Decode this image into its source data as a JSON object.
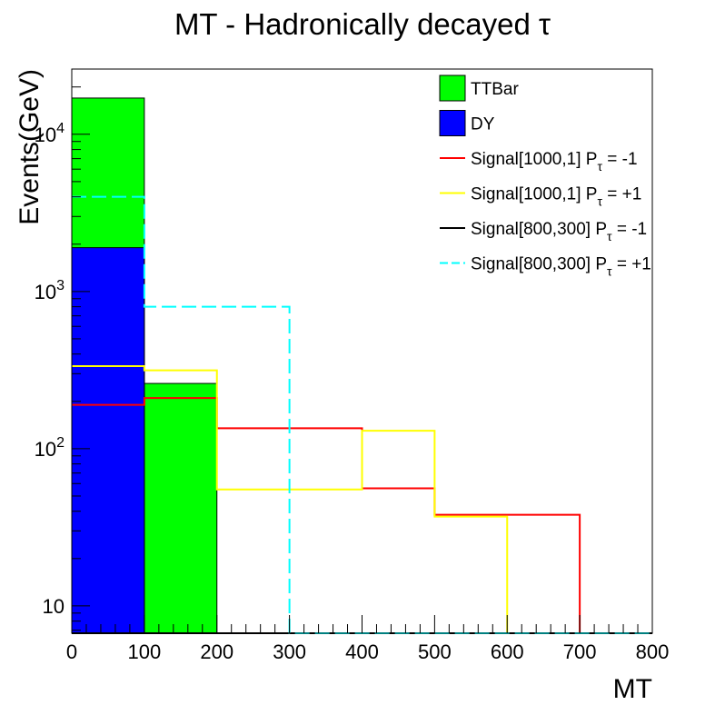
{
  "title": "MT - Hadronically decayed τ",
  "chart_data": {
    "type": "bar",
    "subtype": "stacked-histogram-with-step-overlays",
    "title": "MT - Hadronically decayed τ",
    "xlabel": "MT",
    "ylabel": "Events(GeV)",
    "xlim": [
      0,
      800
    ],
    "ylim": [
      6.7,
      26000
    ],
    "yscale": "log",
    "grid": false,
    "legend_position": "top-right",
    "x_ticks": [
      {
        "value": 0,
        "label": "0"
      },
      {
        "value": 100,
        "label": "100"
      },
      {
        "value": 200,
        "label": "200"
      },
      {
        "value": 300,
        "label": "300"
      },
      {
        "value": 400,
        "label": "400"
      },
      {
        "value": 500,
        "label": "500"
      },
      {
        "value": 600,
        "label": "600"
      },
      {
        "value": 700,
        "label": "700"
      },
      {
        "value": 800,
        "label": "800"
      }
    ],
    "y_ticks": [
      {
        "value": 10,
        "base": "10",
        "exp": ""
      },
      {
        "value": 100,
        "base": "10",
        "exp": "2"
      },
      {
        "value": 1000,
        "base": "10",
        "exp": "3"
      },
      {
        "value": 10000,
        "base": "10",
        "exp": "4"
      }
    ],
    "bin_edges": [
      0,
      100,
      200,
      300,
      400,
      500,
      600,
      700,
      800
    ],
    "stacked": [
      {
        "name": "DY",
        "color": "#0000ff",
        "values": [
          1900,
          0,
          0,
          0,
          0,
          0,
          0,
          0
        ]
      },
      {
        "name": "TTBar",
        "color": "#00ff00",
        "values": [
          15100,
          260,
          0,
          0,
          0,
          0,
          0,
          0
        ]
      }
    ],
    "series": [
      {
        "name": "Signal[1000,1]",
        "label_suffix": " = -1",
        "color": "#ff0000",
        "dash": "solid",
        "values": [
          190,
          210,
          135,
          135,
          56,
          38,
          38,
          0
        ]
      },
      {
        "name": "Signal[1000,1]",
        "label_suffix": " = +1",
        "color": "#ffff00",
        "dash": "solid",
        "values": [
          335,
          315,
          55,
          55,
          130,
          37,
          0,
          0
        ]
      },
      {
        "name": "Signal[800,300]",
        "label_suffix": " = -1",
        "color": "#000000",
        "dash": "solid",
        "values": [
          0,
          0,
          0,
          0,
          0,
          0,
          0,
          0
        ]
      },
      {
        "name": "Signal[800,300]",
        "label_suffix": " = +1",
        "color": "#00ffff",
        "dash": "dashed",
        "values": [
          4000,
          800,
          800,
          0,
          0,
          0,
          0,
          0
        ]
      }
    ],
    "legend": [
      {
        "label": "TTBar",
        "color": "#00ff00",
        "kind": "box"
      },
      {
        "label": "DY",
        "color": "#0000ff",
        "kind": "box"
      },
      {
        "label": "Signal[1000,1] P",
        "sub": "τ",
        "suffix": " = -1",
        "color": "#ff0000",
        "kind": "line"
      },
      {
        "label": "Signal[1000,1] P",
        "sub": "τ",
        "suffix": " = +1",
        "color": "#ffff00",
        "kind": "line"
      },
      {
        "label": "Signal[800,300] P",
        "sub": "τ",
        "suffix": " = -1",
        "color": "#000000",
        "kind": "line"
      },
      {
        "label": "Signal[800,300] P",
        "sub": "τ",
        "suffix": " = +1",
        "color": "#00ffff",
        "kind": "dashed"
      }
    ]
  }
}
